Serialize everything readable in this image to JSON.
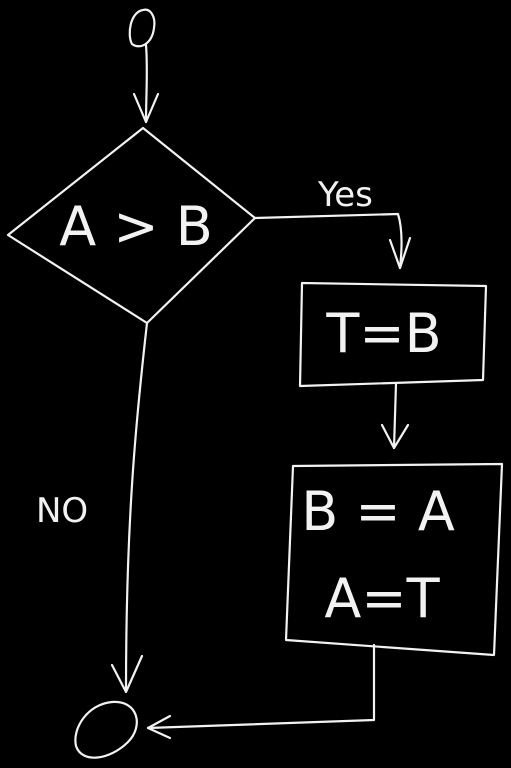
{
  "diagram": {
    "start_label": "0",
    "decision": {
      "condition": "A > B"
    },
    "branch_yes": "Yes",
    "branch_no": "NO",
    "process1": {
      "statement": "T=B"
    },
    "process2": {
      "line1": "B = A",
      "line2": "A=T"
    }
  },
  "colors": {
    "background": "#000000",
    "ink": "#f2f2f2"
  }
}
